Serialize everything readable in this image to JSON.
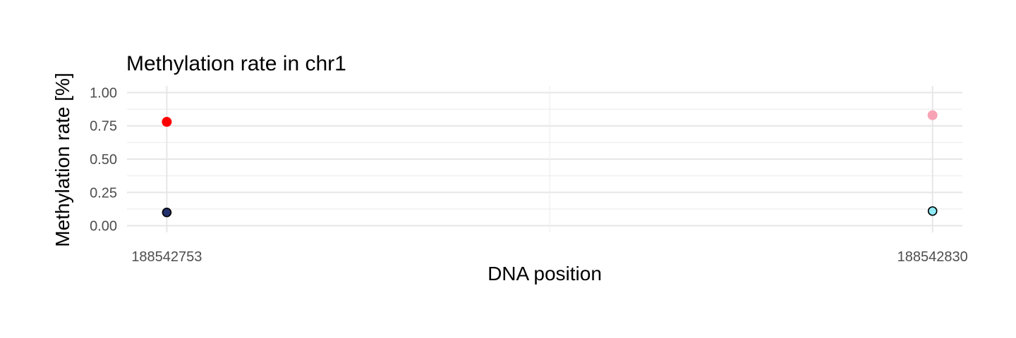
{
  "chart_data": {
    "type": "scatter",
    "title": "Methylation rate in chr1",
    "xlabel": "DNA position",
    "ylabel": "Methylation rate [%]",
    "x_ticks": [
      "188542753",
      "188542830"
    ],
    "y_ticks": [
      "0.00",
      "0.25",
      "0.50",
      "0.75",
      "1.00"
    ],
    "xlim": [
      188542749,
      188542833
    ],
    "ylim": [
      -0.05,
      1.05
    ],
    "grid": true,
    "legend": "none",
    "points": [
      {
        "x": 188542753,
        "y": 0.78,
        "fill": "#ff0000",
        "outlined": false
      },
      {
        "x": 188542753,
        "y": 0.1,
        "fill": "#22306b",
        "outlined": true
      },
      {
        "x": 188542830,
        "y": 0.83,
        "fill": "#f8a3b5",
        "outlined": false
      },
      {
        "x": 188542830,
        "y": 0.11,
        "fill": "#8eeaf5",
        "outlined": true
      }
    ]
  }
}
